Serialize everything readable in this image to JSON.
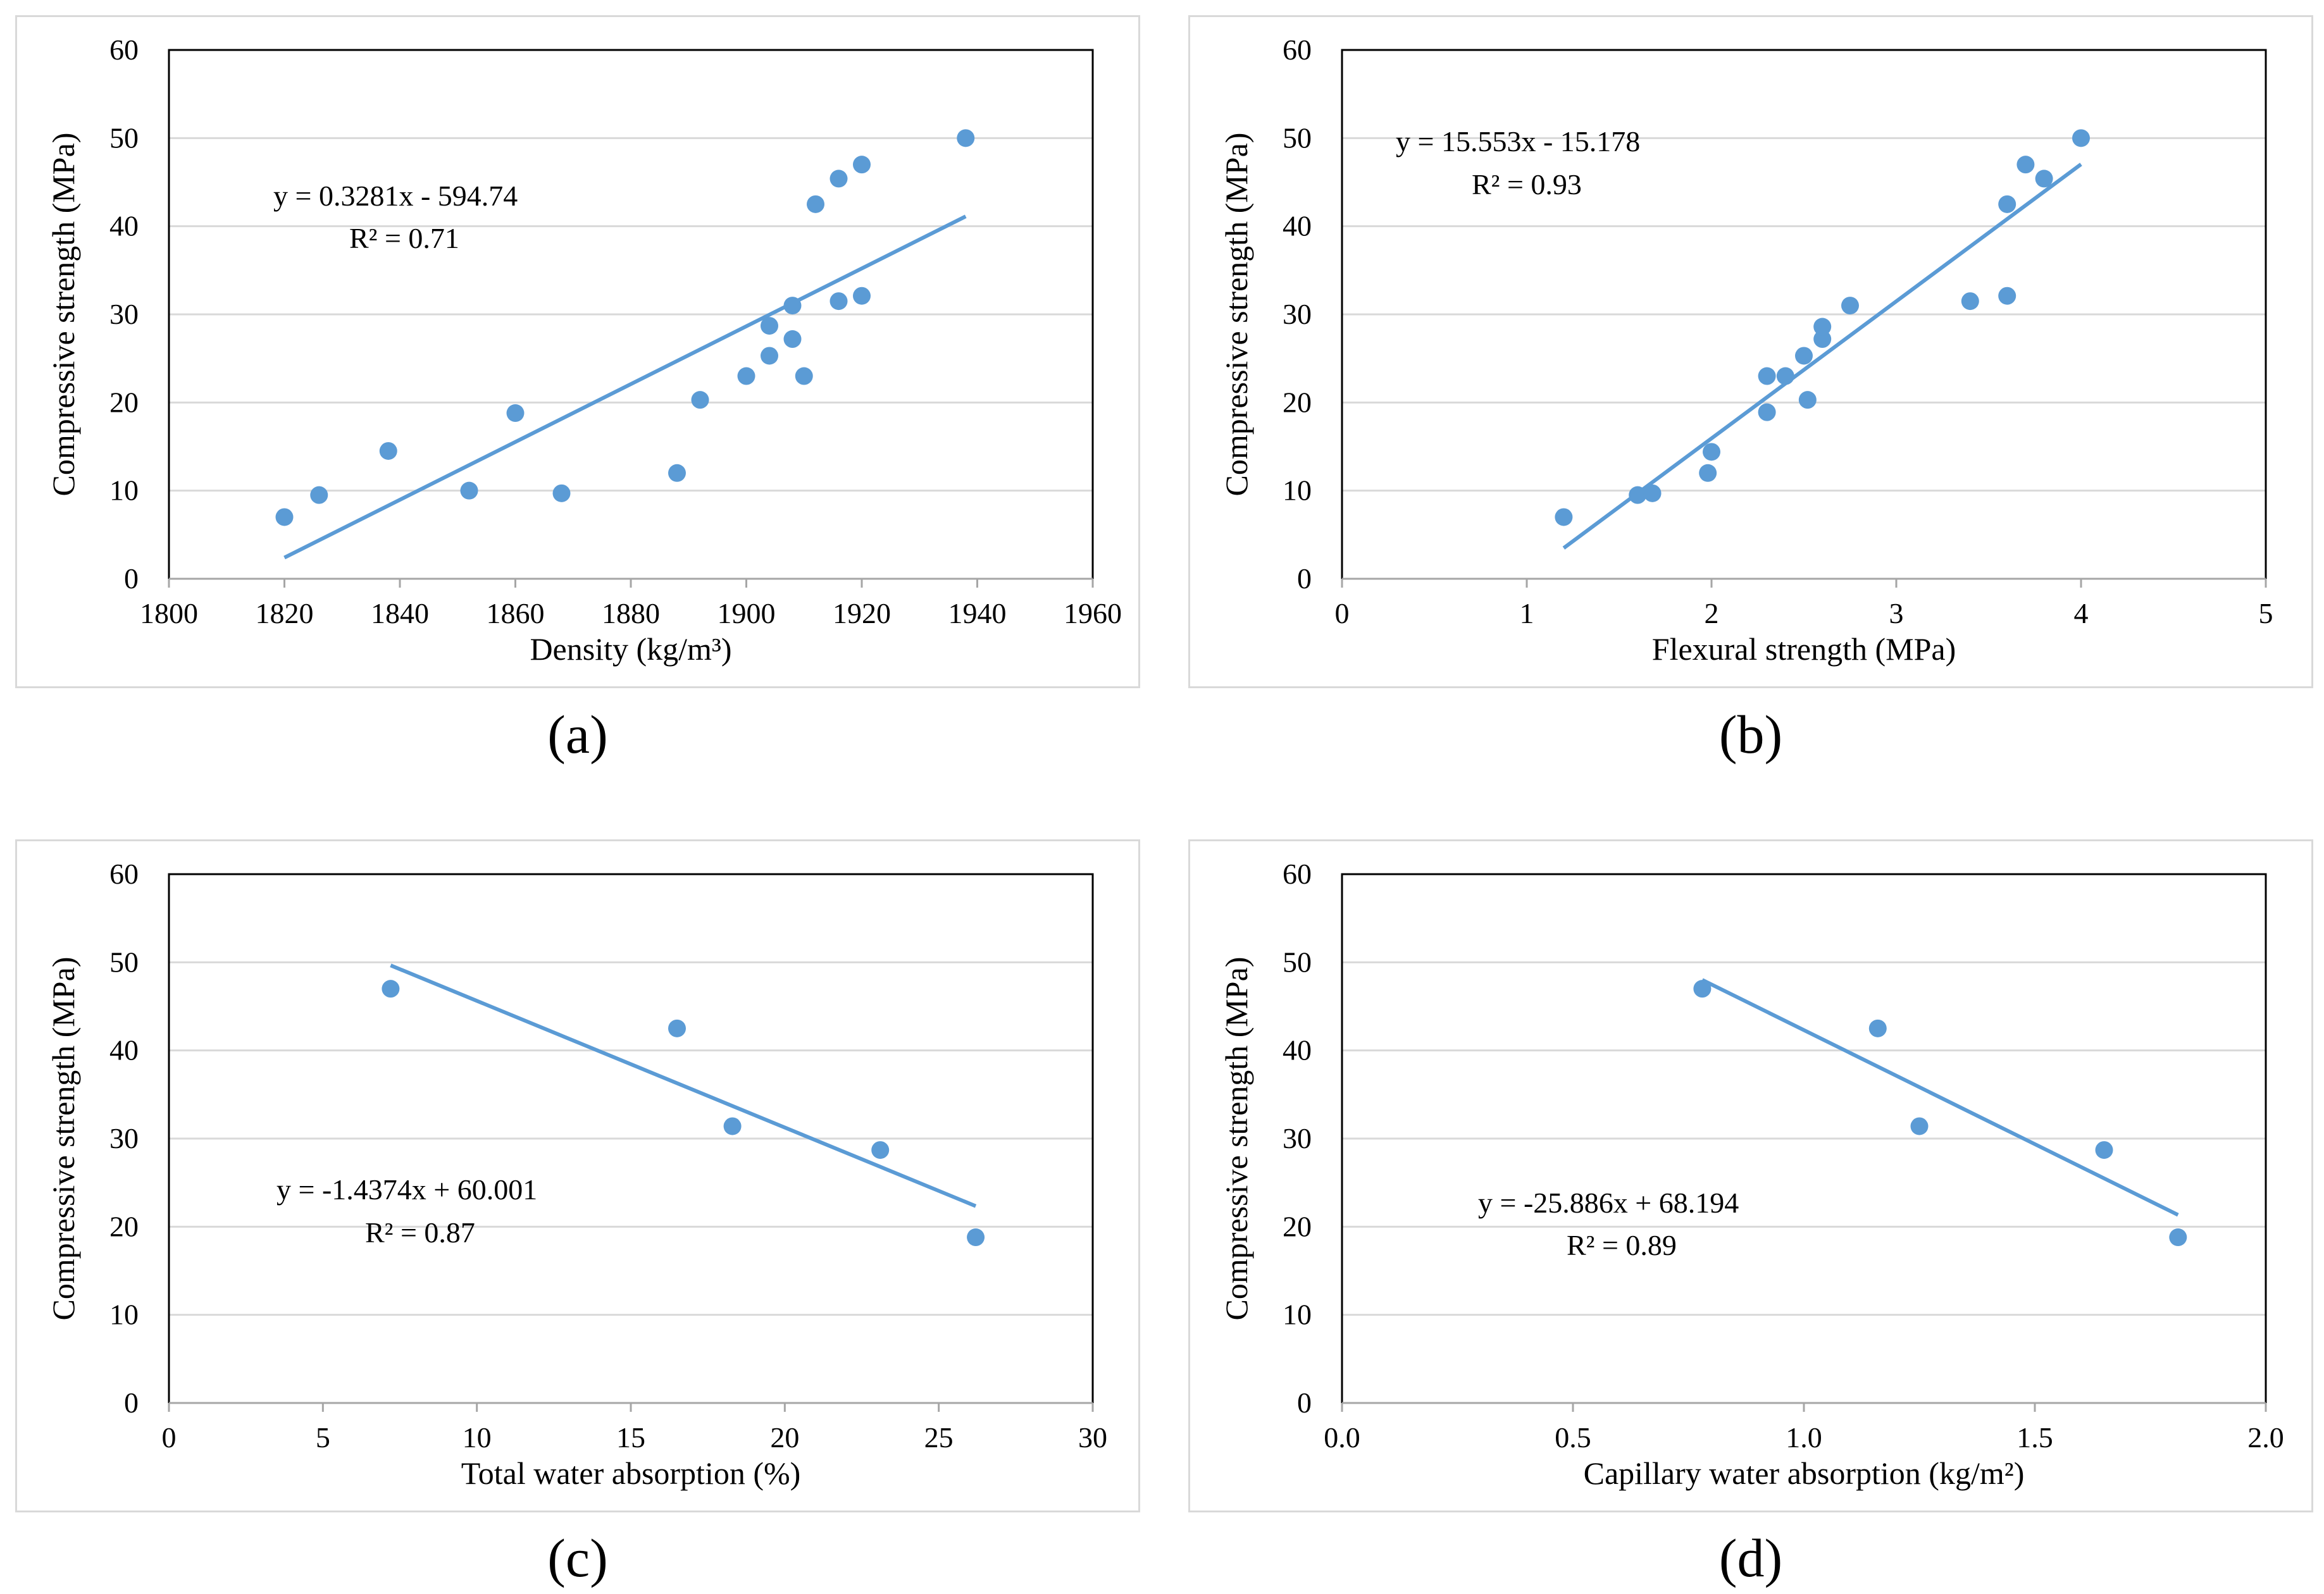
{
  "colors": {
    "marker": "#5b9bd5",
    "trendline": "#5b9bd5",
    "gridline": "#d9d9d9",
    "axis": "#000000",
    "panel_border": "#d9d9d9"
  },
  "chart_data": [
    {
      "id": "a",
      "type": "scatter",
      "caption": "(a)",
      "xlabel": "Density (kg/m³)",
      "ylabel": "Compressive strength (MPa)",
      "xlim": [
        1800,
        1960
      ],
      "xticks": [
        1800,
        1820,
        1840,
        1860,
        1880,
        1900,
        1920,
        1940,
        1960
      ],
      "xdecimals": 0,
      "ylim": [
        0,
        60
      ],
      "yticks": [
        0,
        10,
        20,
        30,
        40,
        50,
        60
      ],
      "grid": true,
      "equation": "y = 0.3281x - 594.74",
      "r2": "R² = 0.71",
      "trendline": {
        "slope": 0.3281,
        "intercept": -594.74,
        "x_range": [
          1820,
          1938
        ]
      },
      "points": [
        [
          1820,
          7.0
        ],
        [
          1826,
          9.5
        ],
        [
          1838,
          14.5
        ],
        [
          1852,
          10.0
        ],
        [
          1860,
          18.8
        ],
        [
          1868,
          9.7
        ],
        [
          1888,
          12.0
        ],
        [
          1892,
          20.3
        ],
        [
          1900,
          23.0
        ],
        [
          1904,
          25.3
        ],
        [
          1904,
          28.7
        ],
        [
          1908,
          27.2
        ],
        [
          1908,
          31.0
        ],
        [
          1910,
          23.0
        ],
        [
          1912,
          42.5
        ],
        [
          1916,
          31.5
        ],
        [
          1916,
          45.4
        ],
        [
          1920,
          32.1
        ],
        [
          1920,
          47.0
        ],
        [
          1938,
          50.0
        ]
      ]
    },
    {
      "id": "b",
      "type": "scatter",
      "caption": "(b)",
      "xlabel": "Flexural strength (MPa)",
      "ylabel": "Compressive strength (MPa)",
      "xlim": [
        0,
        5
      ],
      "xticks": [
        0,
        1,
        2,
        3,
        4,
        5
      ],
      "xdecimals": 0,
      "ylim": [
        0,
        60
      ],
      "yticks": [
        0,
        10,
        20,
        30,
        40,
        50,
        60
      ],
      "grid": true,
      "equation": "y = 15.553x - 15.178",
      "r2": "R² = 0.93",
      "trendline": {
        "slope": 15.553,
        "intercept": -15.178,
        "x_range": [
          1.2,
          4.0
        ]
      },
      "points": [
        [
          1.2,
          7.0
        ],
        [
          1.6,
          9.5
        ],
        [
          1.68,
          9.7
        ],
        [
          1.98,
          12.0
        ],
        [
          2.0,
          14.4
        ],
        [
          2.3,
          18.9
        ],
        [
          2.3,
          23.0
        ],
        [
          2.4,
          23.0
        ],
        [
          2.5,
          25.3
        ],
        [
          2.52,
          20.3
        ],
        [
          2.6,
          27.2
        ],
        [
          2.6,
          28.6
        ],
        [
          2.75,
          31.0
        ],
        [
          3.4,
          31.5
        ],
        [
          3.6,
          32.1
        ],
        [
          3.6,
          42.5
        ],
        [
          3.7,
          47.0
        ],
        [
          3.8,
          45.4
        ],
        [
          4.0,
          50.0
        ]
      ]
    },
    {
      "id": "c",
      "type": "scatter",
      "caption": "(c)",
      "xlabel": "Total water absorption (%)",
      "ylabel": "Compressive strength (MPa)",
      "xlim": [
        0,
        30
      ],
      "xticks": [
        0,
        5,
        10,
        15,
        20,
        25,
        30
      ],
      "xdecimals": 0,
      "ylim": [
        0,
        60
      ],
      "yticks": [
        0,
        10,
        20,
        30,
        40,
        50,
        60
      ],
      "grid": true,
      "equation": "y = -1.4374x + 60.001",
      "r2": "R² = 0.87",
      "trendline": {
        "slope": -1.4374,
        "intercept": 60.001,
        "x_range": [
          7.2,
          26.2
        ]
      },
      "points": [
        [
          7.2,
          47.0
        ],
        [
          16.5,
          42.5
        ],
        [
          18.3,
          31.4
        ],
        [
          23.1,
          28.7
        ],
        [
          26.2,
          18.8
        ]
      ]
    },
    {
      "id": "d",
      "type": "scatter",
      "caption": "(d)",
      "xlabel": "Capillary water absorption (kg/m²)",
      "ylabel": "Compressive strength (MPa)",
      "xlim": [
        0,
        2
      ],
      "xticks": [
        0,
        0.5,
        1,
        1.5,
        2
      ],
      "xdecimals": 1,
      "ylim": [
        0,
        60
      ],
      "yticks": [
        0,
        10,
        20,
        30,
        40,
        50,
        60
      ],
      "grid": true,
      "equation": "y = -25.886x + 68.194",
      "r2": "R² = 0.89",
      "trendline": {
        "slope": -25.886,
        "intercept": 68.194,
        "x_range": [
          0.78,
          1.81
        ]
      },
      "points": [
        [
          0.78,
          47.0
        ],
        [
          1.16,
          42.5
        ],
        [
          1.25,
          31.4
        ],
        [
          1.65,
          28.7
        ],
        [
          1.81,
          18.8
        ]
      ]
    }
  ]
}
